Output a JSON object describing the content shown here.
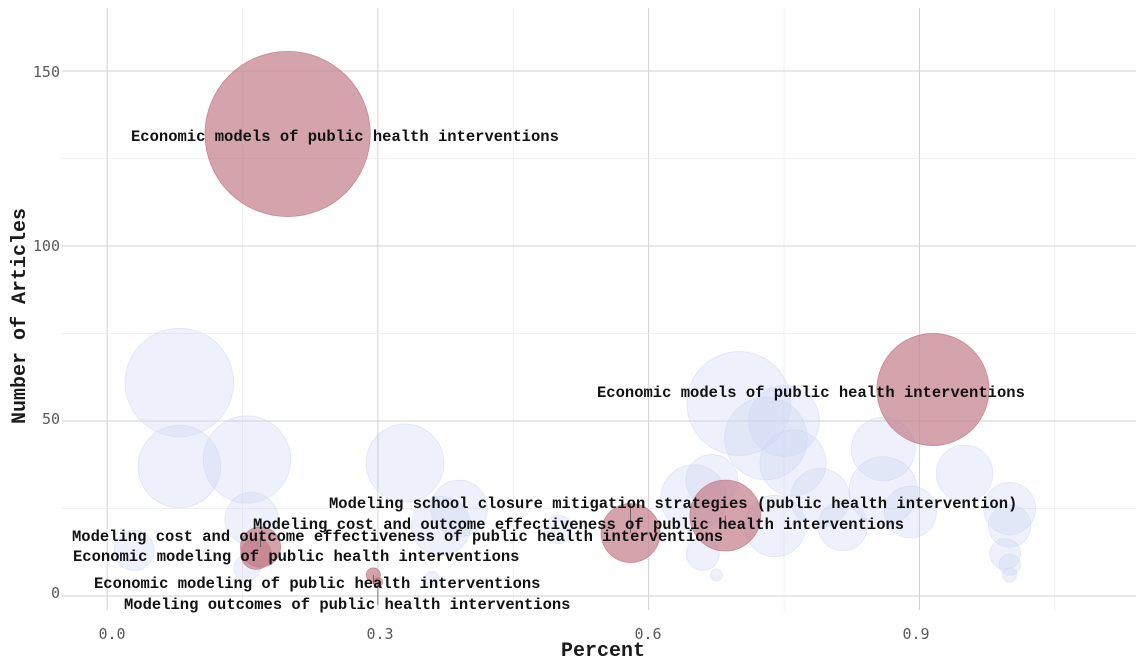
{
  "chart_data": {
    "type": "scatter",
    "title": "",
    "xlabel": "Percent",
    "ylabel": "Number of Articles",
    "xlim": [
      -0.05,
      1.14
    ],
    "ylim": [
      -4,
      168
    ],
    "x_ticks": [
      0.0,
      0.3,
      0.6,
      0.9
    ],
    "x_tick_labels": [
      "0.0",
      "0.3",
      "0.6",
      "0.9"
    ],
    "y_ticks": [
      0,
      50,
      100,
      150
    ],
    "y_tick_labels": [
      "0",
      "50",
      "100",
      "150"
    ],
    "grid": true,
    "legend": "none",
    "colors": {
      "highlight": "#c47f8c",
      "background": "#c9d3f3",
      "grid": "#d2d2d2"
    },
    "series": [
      {
        "points": [
          {
            "x": 0.08,
            "y": 61,
            "size": 92
          },
          {
            "x": 0.08,
            "y": 37,
            "size": 70
          },
          {
            "x": 0.155,
            "y": 39,
            "size": 74
          },
          {
            "x": 0.16,
            "y": 22,
            "size": 45
          },
          {
            "x": 0.03,
            "y": 13,
            "size": 34
          },
          {
            "x": 0.155,
            "y": 8,
            "size": 22
          },
          {
            "x": 0.33,
            "y": 38,
            "size": 66
          },
          {
            "x": 0.37,
            "y": 20,
            "size": 50
          },
          {
            "x": 0.39,
            "y": 25,
            "size": 48
          },
          {
            "x": 0.36,
            "y": 5,
            "size": 12
          },
          {
            "x": 0.5,
            "y": 19,
            "size": 24
          },
          {
            "x": 0.65,
            "y": 28,
            "size": 56
          },
          {
            "x": 0.66,
            "y": 12,
            "size": 28
          },
          {
            "x": 0.67,
            "y": 33,
            "size": 44
          },
          {
            "x": 0.675,
            "y": 6,
            "size": 10
          },
          {
            "x": 0.7,
            "y": 55,
            "size": 88
          },
          {
            "x": 0.73,
            "y": 45,
            "size": 70
          },
          {
            "x": 0.75,
            "y": 50,
            "size": 60
          },
          {
            "x": 0.76,
            "y": 38,
            "size": 56
          },
          {
            "x": 0.74,
            "y": 20,
            "size": 52
          },
          {
            "x": 0.79,
            "y": 28,
            "size": 50
          },
          {
            "x": 0.815,
            "y": 20,
            "size": 42
          },
          {
            "x": 0.86,
            "y": 42,
            "size": 54
          },
          {
            "x": 0.86,
            "y": 30,
            "size": 58
          },
          {
            "x": 0.89,
            "y": 24,
            "size": 44
          },
          {
            "x": 0.95,
            "y": 35,
            "size": 48
          },
          {
            "x": 1.0,
            "y": 25,
            "size": 44
          },
          {
            "x": 1.0,
            "y": 20,
            "size": 36
          },
          {
            "x": 0.995,
            "y": 12,
            "size": 26
          },
          {
            "x": 1.0,
            "y": 9,
            "size": 18
          },
          {
            "x": 1.0,
            "y": 6,
            "size": 12
          }
        ]
      },
      {
        "points": [
          {
            "x": 0.2,
            "y": 132,
            "size": 140,
            "label": "Economic models of public health interventions"
          },
          {
            "x": 0.915,
            "y": 59,
            "size": 95,
            "label": "Economic models of public health interventions"
          },
          {
            "x": 0.58,
            "y": 18,
            "size": 50,
            "label": "Modeling school closure mitigation strategies (public health intervention)"
          },
          {
            "x": 0.685,
            "y": 23,
            "size": 60,
            "label": "Modeling cost and outcome effectiveness of public health interventions"
          },
          {
            "x": 0.17,
            "y": 14,
            "size": 34,
            "label": "Modeling cost and outcome effectiveness of public health interventions"
          },
          {
            "x": 0.165,
            "y": 12,
            "size": 26,
            "label": "Economic modeling of public health interventions"
          },
          {
            "x": 0.295,
            "y": 6,
            "size": 12,
            "label": "Economic modeling of public health interventions"
          },
          {
            "x": 0.3,
            "y": 4,
            "size": 8,
            "label": "Modeling outcomes of public health interventions"
          }
        ]
      }
    ]
  }
}
